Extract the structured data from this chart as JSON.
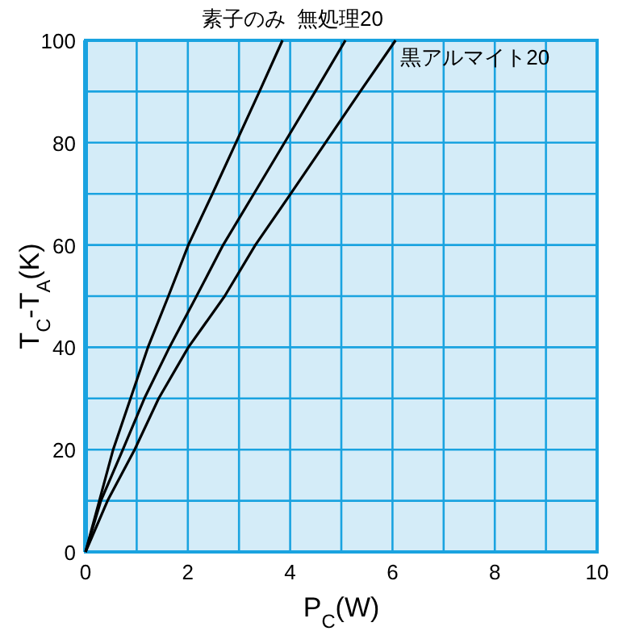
{
  "chart_data": {
    "type": "line",
    "xlabel": "P$_{C}$(W)",
    "ylabel": "T$_{C}$-T$_{A}$(K)",
    "xlim": [
      0,
      10
    ],
    "ylim": [
      0,
      100
    ],
    "xticks": [
      0,
      {
        "value": 1,
        "label": null
      },
      2,
      {
        "value": 3,
        "label": null
      },
      4,
      {
        "value": 5,
        "label": null
      },
      6,
      {
        "value": 7,
        "label": null
      },
      8,
      {
        "value": 9,
        "label": null
      },
      10
    ],
    "yticks": [
      0,
      {
        "value": 10,
        "label": null
      },
      20,
      {
        "value": 30,
        "label": null
      },
      40,
      {
        "value": 50,
        "label": null
      },
      60,
      {
        "value": 70,
        "label": null
      },
      80,
      {
        "value": 90,
        "label": null
      },
      100
    ],
    "grid": true,
    "marker": "none",
    "line_style": "solid",
    "series": [
      {
        "name": "素子のみ",
        "color": "#000000",
        "x": [
          0,
          0.27,
          0.54,
          0.88,
          1.22,
          1.62,
          2.01,
          2.48,
          2.94,
          3.4,
          3.85
        ],
        "values": [
          0,
          10,
          20,
          30,
          40,
          50,
          60,
          70,
          80,
          90,
          100
        ]
      },
      {
        "name": "無処理20",
        "color": "#000000",
        "x": [
          0,
          0.3,
          0.73,
          1.15,
          1.64,
          2.17,
          2.69,
          3.29,
          3.89,
          4.49,
          5.08
        ],
        "values": [
          0,
          10,
          20,
          30,
          40,
          50,
          60,
          70,
          80,
          90,
          100
        ]
      },
      {
        "name": "黒アルマイト20",
        "color": "#000000",
        "x": [
          0,
          0.43,
          0.96,
          1.43,
          2.01,
          2.72,
          3.32,
          4.01,
          4.69,
          5.37,
          6.06
        ],
        "values": [
          0,
          10,
          20,
          30,
          40,
          50,
          60,
          70,
          80,
          90,
          100
        ]
      }
    ]
  }
}
